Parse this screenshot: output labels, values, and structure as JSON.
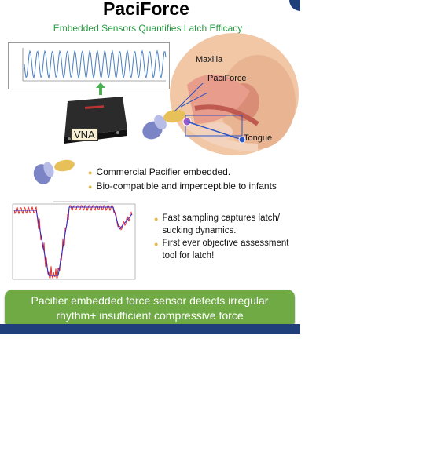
{
  "slide": {
    "title": "PaciForce",
    "subtitle": "Embedded Sensors Quantifies Latch Efficacy"
  },
  "device_label": "VNA",
  "anatomy_labels": {
    "maxilla": "Maxilla",
    "paciforce": "PaciForce",
    "tongue": "Tongue"
  },
  "bullets_top": [
    "Commercial Pacifier embedded.",
    "Bio-compatible and imperceptible to infants"
  ],
  "bullets_right": [
    "Fast sampling captures latch/ sucking dynamics.",
    "First ever objective assessment tool for latch!"
  ],
  "banner": {
    "line1": "Pacifier embedded force sensor detects irregular",
    "line2": "rhythm+ insufficient compressive force"
  },
  "colors": {
    "title_green": "#1f9a3c",
    "banner_green": "#6faa44",
    "bullet_yellow": "#e2b542",
    "navy": "#1f3f7a",
    "wave_blue": "#4a7fc0",
    "trace_red": "#e11b1b",
    "trace_blue": "#2a2ad0"
  },
  "icons": {
    "arrow": "green-up-arrow-icon",
    "device": "vna-device-icon",
    "pacifier": "pacifier-icon",
    "baby": "baby-head-illustration"
  }
}
